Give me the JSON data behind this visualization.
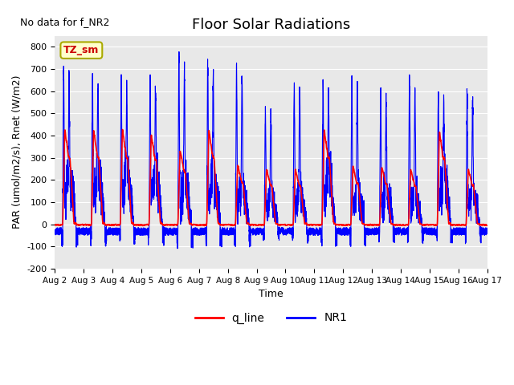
{
  "title": "Floor Solar Radiations",
  "xlabel": "Time",
  "ylabel": "PAR (umol/m2/s), Rnet (W/m2)",
  "ylim": [
    -200,
    850
  ],
  "yticks": [
    -200,
    -100,
    0,
    100,
    200,
    300,
    400,
    500,
    600,
    700,
    800
  ],
  "x_labels": [
    "Aug 2",
    "Aug 3",
    "Aug 4",
    "Aug 5",
    "Aug 6",
    "Aug 7",
    "Aug 8",
    "Aug 9",
    "Aug 10",
    "Aug 11",
    "Aug 12",
    "Aug 13",
    "Aug 14",
    "Aug 15",
    "Aug 16",
    "Aug 17"
  ],
  "no_data_text": "No data for f_NR2",
  "legend_label1": "q_line",
  "legend_label2": "NR1",
  "legend_color1": "#ff0000",
  "legend_color2": "#0000ff",
  "tz_label": "TZ_sm",
  "background_color": "#d8d8d8",
  "axes_background": "#e8e8e8",
  "title_fontsize": 13,
  "days": 15,
  "blue_peaks": [
    700,
    660,
    660,
    640,
    730,
    720,
    700,
    520,
    630,
    670,
    670,
    590,
    645,
    590,
    590
  ],
  "red_peaks": [
    430,
    430,
    430,
    410,
    340,
    430,
    270,
    250,
    250,
    430,
    260,
    260,
    250,
    420,
    250
  ]
}
